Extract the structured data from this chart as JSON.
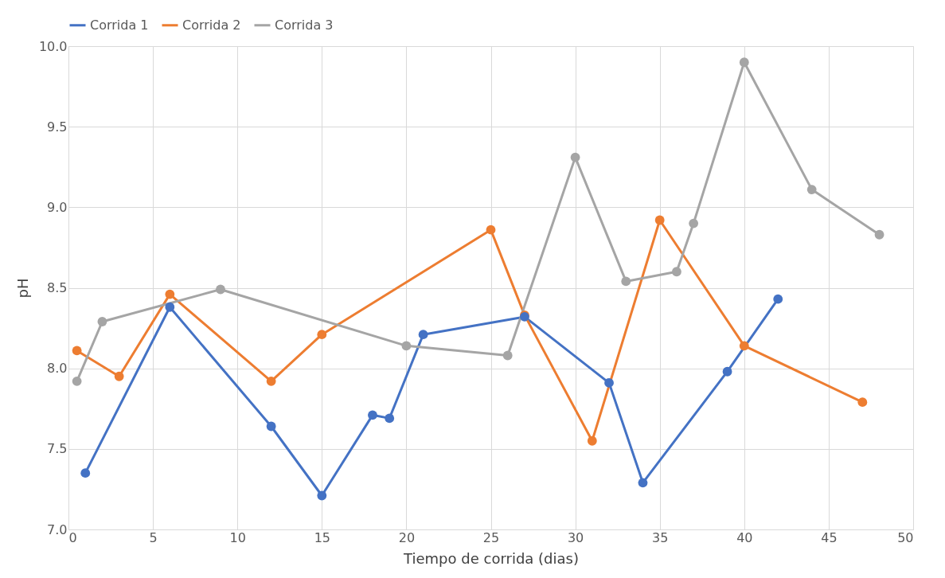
{
  "chart_data": {
    "type": "line",
    "xlabel": "Tiempo de  corrida (dias)",
    "ylabel": "pH",
    "xlim": [
      0,
      50
    ],
    "xticks": [
      0,
      5,
      10,
      15,
      20,
      25,
      30,
      35,
      40,
      45,
      50
    ],
    "ylim": [
      7.0,
      10.0
    ],
    "yticks": [
      {
        "value": 7.0,
        "label": "7.0"
      },
      {
        "value": 7.5,
        "label": "7.5"
      },
      {
        "value": 8.0,
        "label": "8.0"
      },
      {
        "value": 8.5,
        "label": "8.5"
      },
      {
        "value": 9.0,
        "label": "9.0"
      },
      {
        "value": 9.5,
        "label": "9.5"
      },
      {
        "value": 10.0,
        "label": "10.0"
      }
    ],
    "grid": true,
    "legend": "top",
    "marker": "circle",
    "line_style": "solid",
    "series": [
      {
        "name": "Corrida 1",
        "color": "#4472c4",
        "x": [
          1,
          6,
          12,
          15,
          18,
          19,
          21,
          27,
          32,
          34,
          39,
          42
        ],
        "values": [
          7.35,
          8.38,
          7.64,
          7.21,
          7.71,
          7.69,
          8.21,
          8.32,
          7.91,
          7.29,
          7.98,
          8.43
        ]
      },
      {
        "name": "Corrida 2",
        "color": "#ed7d31",
        "x": [
          0.5,
          3,
          6,
          12,
          15,
          25,
          27,
          31,
          35,
          40,
          47
        ],
        "values": [
          8.11,
          7.95,
          8.46,
          7.92,
          8.21,
          8.86,
          8.33,
          7.55,
          8.92,
          8.14,
          7.79
        ]
      },
      {
        "name": "Corrida 3",
        "color": "#a5a5a5",
        "x": [
          0.5,
          2,
          9,
          20,
          26,
          30,
          33,
          36,
          37,
          40,
          44,
          48
        ],
        "values": [
          7.92,
          8.29,
          8.49,
          8.14,
          8.08,
          9.31,
          8.54,
          8.6,
          8.9,
          9.9,
          9.11,
          8.83
        ]
      }
    ]
  }
}
